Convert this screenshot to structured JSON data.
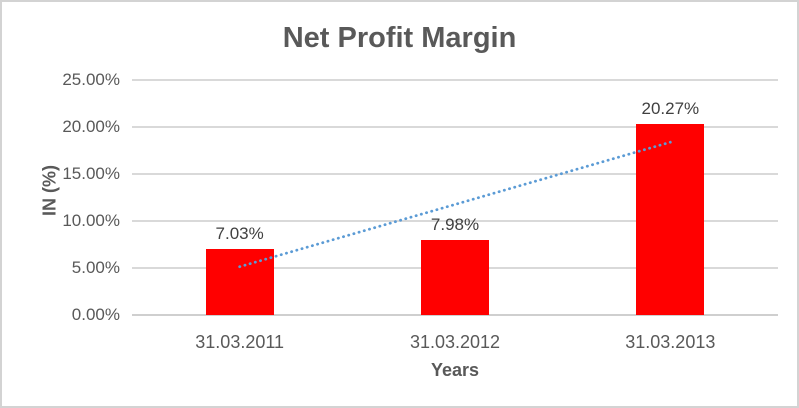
{
  "chart_data": {
    "type": "bar",
    "title": "Net Profit Margin",
    "xlabel": "Years",
    "ylabel": "IN (%)",
    "categories": [
      "31.03.2011",
      "31.03.2012",
      "31.03.2013"
    ],
    "values": [
      7.03,
      7.98,
      20.27
    ],
    "data_labels": [
      "7.03%",
      "7.98%",
      "20.27%"
    ],
    "ylim": [
      0,
      25
    ],
    "ytick_step": 5,
    "ytick_labels": [
      "0.00%",
      "5.00%",
      "10.00%",
      "15.00%",
      "20.00%",
      "25.00%"
    ],
    "grid": true,
    "legend": "none",
    "trendline": {
      "type": "linear",
      "style": "dotted",
      "start_value": 5.14,
      "end_value": 18.38
    },
    "style": {
      "bar_color": "#ff0000",
      "trend_color": "#5b9bd5",
      "gridline_color": "#d9d9d9",
      "axisline_color": "#cfcfcf",
      "title_color": "#595959",
      "tick_color": "#595959",
      "datalabel_color": "#404040",
      "frame_border_color": "#d3d3d3",
      "background": "#ffffff"
    }
  }
}
